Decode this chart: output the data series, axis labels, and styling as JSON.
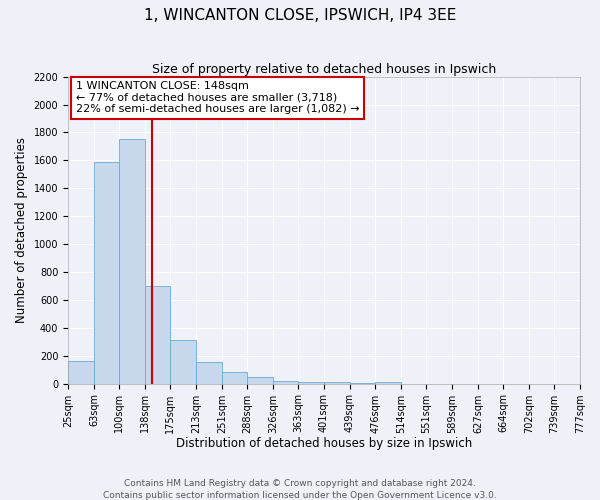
{
  "title": "1, WINCANTON CLOSE, IPSWICH, IP4 3EE",
  "subtitle": "Size of property relative to detached houses in Ipswich",
  "xlabel": "Distribution of detached houses by size in Ipswich",
  "ylabel": "Number of detached properties",
  "bin_edges": [
    25,
    63,
    100,
    138,
    175,
    213,
    251,
    288,
    326,
    363,
    401,
    439,
    476,
    514,
    551,
    589,
    627,
    664,
    702,
    739,
    777
  ],
  "bin_labels": [
    "25sqm",
    "63sqm",
    "100sqm",
    "138sqm",
    "175sqm",
    "213sqm",
    "251sqm",
    "288sqm",
    "326sqm",
    "363sqm",
    "401sqm",
    "439sqm",
    "476sqm",
    "514sqm",
    "551sqm",
    "589sqm",
    "627sqm",
    "664sqm",
    "702sqm",
    "739sqm",
    "777sqm"
  ],
  "counts": [
    160,
    1590,
    1750,
    700,
    315,
    155,
    85,
    45,
    20,
    15,
    10,
    5,
    15,
    0,
    0,
    0,
    0,
    0,
    0,
    0
  ],
  "bar_color": "#c8d8ec",
  "bar_edge_color": "#6aaad4",
  "vline_x": 148,
  "vline_color": "#cc0000",
  "annotation_line1": "1 WINCANTON CLOSE: 148sqm",
  "annotation_line2": "← 77% of detached houses are smaller (3,718)",
  "annotation_line3": "22% of semi-detached houses are larger (1,082) →",
  "annotation_box_color": "#ffffff",
  "annotation_box_edge": "#cc0000",
  "ylim": [
    0,
    2200
  ],
  "yticks": [
    0,
    200,
    400,
    600,
    800,
    1000,
    1200,
    1400,
    1600,
    1800,
    2000,
    2200
  ],
  "footer_line1": "Contains HM Land Registry data © Crown copyright and database right 2024.",
  "footer_line2": "Contains public sector information licensed under the Open Government Licence v3.0.",
  "background_color": "#eef2f8",
  "grid_color": "#ffffff",
  "title_fontsize": 11,
  "subtitle_fontsize": 9,
  "axis_label_fontsize": 8.5,
  "tick_fontsize": 7,
  "annotation_fontsize": 8,
  "footer_fontsize": 6.5
}
